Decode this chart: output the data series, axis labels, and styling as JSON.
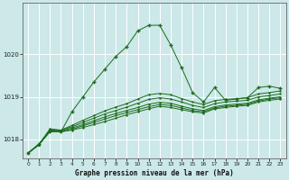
{
  "title": "Graphe pression niveau de la mer (hPa)",
  "bg_color": "#cce8e8",
  "grid_color": "#ffffff",
  "line_color": "#1a6b1a",
  "xlim": [
    -0.5,
    23.5
  ],
  "ylim": [
    1017.55,
    1021.2
  ],
  "yticks": [
    1018,
    1019,
    1020
  ],
  "xticks": [
    0,
    1,
    2,
    3,
    4,
    5,
    6,
    7,
    8,
    9,
    10,
    11,
    12,
    13,
    14,
    15,
    16,
    17,
    18,
    19,
    20,
    21,
    22,
    23
  ],
  "flat_series": [
    [
      1017.68,
      1017.88,
      1018.18,
      1018.18,
      1018.22,
      1018.28,
      1018.35,
      1018.42,
      1018.5,
      1018.58,
      1018.65,
      1018.72,
      1018.78,
      1018.75,
      1018.7,
      1018.65,
      1018.62,
      1018.72,
      1018.75,
      1018.78,
      1018.8,
      1018.88,
      1018.92,
      1018.95
    ],
    [
      1017.68,
      1017.88,
      1018.2,
      1018.18,
      1018.24,
      1018.32,
      1018.4,
      1018.48,
      1018.56,
      1018.63,
      1018.7,
      1018.77,
      1018.82,
      1018.8,
      1018.74,
      1018.68,
      1018.65,
      1018.74,
      1018.78,
      1018.8,
      1018.83,
      1018.9,
      1018.95,
      1018.98
    ],
    [
      1017.68,
      1017.88,
      1018.22,
      1018.2,
      1018.27,
      1018.35,
      1018.44,
      1018.53,
      1018.61,
      1018.68,
      1018.75,
      1018.83,
      1018.87,
      1018.85,
      1018.78,
      1018.72,
      1018.68,
      1018.77,
      1018.81,
      1018.83,
      1018.85,
      1018.93,
      1018.97,
      1019.0
    ],
    [
      1017.68,
      1017.88,
      1018.23,
      1018.21,
      1018.3,
      1018.4,
      1018.5,
      1018.6,
      1018.68,
      1018.76,
      1018.85,
      1018.94,
      1018.98,
      1018.95,
      1018.88,
      1018.8,
      1018.75,
      1018.84,
      1018.88,
      1018.9,
      1018.92,
      1019.0,
      1019.03,
      1019.07
    ],
    [
      1017.68,
      1017.88,
      1018.25,
      1018.22,
      1018.33,
      1018.45,
      1018.56,
      1018.67,
      1018.76,
      1018.84,
      1018.95,
      1019.05,
      1019.08,
      1019.05,
      1018.96,
      1018.88,
      1018.82,
      1018.91,
      1018.94,
      1018.96,
      1018.98,
      1019.07,
      1019.1,
      1019.14
    ]
  ],
  "main_series": [
    1017.68,
    1017.9,
    1018.2,
    1018.18,
    1018.65,
    1019.0,
    1019.35,
    1019.65,
    1019.95,
    1020.18,
    1020.55,
    1020.68,
    1020.68,
    1020.22,
    1019.68,
    1019.1,
    1018.88,
    1019.22,
    1018.92,
    1018.95,
    1018.98,
    1019.22,
    1019.25,
    1019.2
  ]
}
